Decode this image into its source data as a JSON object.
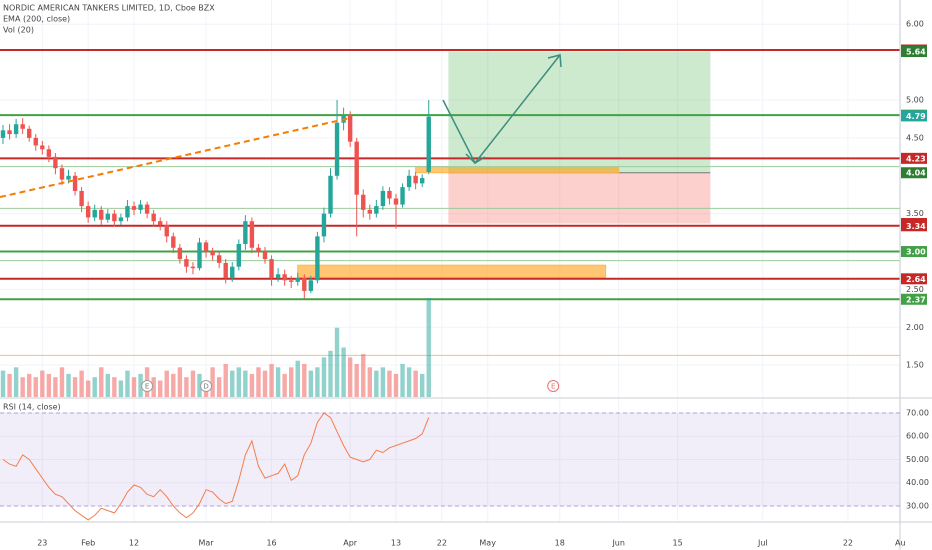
{
  "chart_data": {
    "type": "candlestick",
    "title": "NORDIC AMERICAN TANKERS LIMITED, 1D, Cboe BZX",
    "indicators": [
      "EMA (200, close)",
      "Vol (20)"
    ],
    "up_color": "#26a69a",
    "down_color": "#ef5350",
    "open": [
      4.5,
      4.6,
      4.55,
      4.68,
      4.62,
      4.5,
      4.4,
      4.35,
      4.25,
      4.1,
      3.95,
      4.0,
      3.8,
      3.6,
      3.45,
      3.55,
      3.42,
      3.5,
      3.4,
      3.45,
      3.6,
      3.55,
      3.62,
      3.5,
      3.4,
      3.35,
      3.2,
      3.05,
      2.9,
      2.8,
      2.78,
      3.12,
      3.0,
      2.95,
      2.85,
      2.65,
      2.8,
      3.1,
      3.4,
      3.05,
      3.0,
      2.9,
      2.65,
      2.7,
      2.62,
      2.6,
      2.65,
      2.48,
      2.62,
      3.2,
      3.5,
      4.0,
      4.7,
      4.8,
      4.45,
      3.75,
      3.55,
      3.5,
      3.6,
      3.8,
      3.7,
      3.62,
      3.85,
      4.0,
      3.9,
      4.05
    ],
    "high": [
      4.67,
      4.68,
      4.75,
      4.76,
      4.66,
      4.55,
      4.46,
      4.4,
      4.3,
      4.15,
      4.08,
      4.05,
      3.85,
      3.66,
      3.62,
      3.6,
      3.56,
      3.55,
      3.5,
      3.68,
      3.66,
      3.68,
      3.66,
      3.55,
      3.45,
      3.4,
      3.25,
      3.1,
      2.95,
      2.86,
      3.18,
      3.15,
      3.05,
      3.0,
      2.9,
      2.86,
      3.16,
      3.48,
      3.45,
      3.1,
      3.06,
      2.95,
      2.78,
      2.76,
      2.68,
      2.72,
      2.7,
      2.68,
      3.26,
      3.58,
      4.1,
      5.0,
      4.9,
      4.85,
      4.5,
      3.82,
      3.62,
      3.68,
      3.86,
      3.85,
      3.76,
      3.9,
      4.08,
      4.05,
      4.02,
      5.0
    ],
    "low": [
      4.42,
      4.48,
      4.5,
      4.55,
      4.45,
      4.33,
      4.28,
      4.18,
      4.02,
      3.88,
      3.9,
      3.74,
      3.52,
      3.38,
      3.4,
      3.35,
      3.38,
      3.33,
      3.35,
      3.4,
      3.48,
      3.5,
      3.44,
      3.33,
      3.28,
      3.12,
      2.98,
      2.84,
      2.72,
      2.7,
      2.75,
      2.92,
      2.88,
      2.78,
      2.58,
      2.6,
      2.75,
      3.02,
      2.98,
      2.93,
      2.84,
      2.55,
      2.6,
      2.55,
      2.52,
      2.55,
      2.38,
      2.45,
      2.58,
      3.12,
      3.45,
      3.95,
      4.6,
      4.38,
      3.2,
      3.45,
      3.42,
      3.45,
      3.55,
      3.62,
      3.3,
      3.58,
      3.8,
      3.82,
      3.85,
      4.02
    ],
    "close": [
      4.6,
      4.55,
      4.68,
      4.62,
      4.5,
      4.4,
      4.35,
      4.25,
      4.1,
      3.95,
      4.0,
      3.8,
      3.6,
      3.45,
      3.55,
      3.42,
      3.5,
      3.4,
      3.45,
      3.6,
      3.55,
      3.62,
      3.5,
      3.4,
      3.35,
      3.2,
      3.05,
      2.9,
      2.8,
      2.78,
      3.12,
      3.0,
      2.95,
      2.85,
      2.65,
      2.8,
      3.1,
      3.4,
      3.05,
      3.0,
      2.9,
      2.65,
      2.7,
      2.62,
      2.6,
      2.65,
      2.48,
      2.62,
      3.2,
      3.5,
      4.0,
      4.7,
      4.8,
      4.45,
      3.75,
      3.55,
      3.5,
      3.6,
      3.8,
      3.7,
      3.62,
      3.85,
      4.0,
      3.9,
      3.97,
      4.78
    ],
    "volume": [
      8,
      7,
      9,
      6,
      7,
      6,
      8,
      7,
      6,
      9,
      7,
      6,
      8,
      5,
      6,
      9,
      7,
      6,
      5,
      8,
      6,
      7,
      9,
      6,
      5,
      8,
      7,
      9,
      6,
      8,
      7,
      5,
      9,
      6,
      10,
      8,
      9,
      8,
      7,
      9,
      8,
      10,
      9,
      7,
      9,
      11,
      10,
      8,
      9,
      12,
      14,
      21,
      15,
      12,
      10,
      13,
      9,
      8,
      9,
      8,
      7,
      10,
      9,
      8,
      7,
      30
    ],
    "volume_ylim": [
      0,
      40
    ],
    "xlim": [
      -0.46,
      136.95
    ],
    "xticks": [
      {
        "value": 6,
        "label": "23"
      },
      {
        "value": 13,
        "label": "Feb"
      },
      {
        "value": 20,
        "label": "12"
      },
      {
        "value": 31,
        "label": "Mar"
      },
      {
        "value": 41,
        "label": "16"
      },
      {
        "value": 53,
        "label": "Apr"
      },
      {
        "value": 60,
        "label": "13"
      },
      {
        "value": 67,
        "label": "22"
      },
      {
        "value": 74,
        "label": "May"
      },
      {
        "value": 85,
        "label": "18"
      },
      {
        "value": 94,
        "label": "Jun"
      },
      {
        "value": 103,
        "label": "15"
      },
      {
        "value": 116,
        "label": "Jul"
      },
      {
        "value": 129,
        "label": "22"
      },
      {
        "value": 137,
        "label": "Au"
      }
    ],
    "ylim": [
      1.08,
      6.32
    ],
    "yticks": [
      {
        "value": 1.5,
        "label": "1.50"
      },
      {
        "value": 2,
        "label": "2.00"
      },
      {
        "value": 2.5,
        "label": "2.50"
      },
      {
        "value": 3.5,
        "label": "3.50"
      },
      {
        "value": 4.5,
        "label": "4.50"
      },
      {
        "value": 5,
        "label": "5.00"
      },
      {
        "value": 6,
        "label": "6.00"
      }
    ],
    "grid": true,
    "levels": [
      {
        "value": 5.66,
        "color": "#c62828",
        "width": 2
      },
      {
        "value": 4.8,
        "color": "#43a047",
        "width": 2
      },
      {
        "value": 4.23,
        "color": "#c62828",
        "width": 2
      },
      {
        "value": 4.12,
        "color": "#9ccc9c",
        "width": 1
      },
      {
        "value": 3.57,
        "color": "#9ccc9c",
        "width": 1
      },
      {
        "value": 3.34,
        "color": "#c62828",
        "width": 2
      },
      {
        "value": 3.0,
        "color": "#43a047",
        "width": 2
      },
      {
        "value": 2.88,
        "color": "#9ccc9c",
        "width": 1
      },
      {
        "value": 2.64,
        "color": "#c62828",
        "width": 2
      },
      {
        "value": 2.37,
        "color": "#43a047",
        "width": 2
      },
      {
        "value": 1.63,
        "color": "#f6c26b",
        "width": 1
      }
    ],
    "price_labels": [
      {
        "value": 5.66,
        "label": "5.66",
        "color": "#c62828"
      },
      {
        "value": 5.64,
        "label": "5.64",
        "color": "#2e7d32"
      },
      {
        "value": 4.8,
        "label": "4.80",
        "color": "#43a047"
      },
      {
        "value": 4.79,
        "label": "4.79",
        "color": "#26a69a"
      },
      {
        "value": 4.23,
        "label": "4.23",
        "color": "#c62828"
      },
      {
        "value": 4.04,
        "label": "4.04",
        "color": "#2e7d32"
      },
      {
        "value": 3.37,
        "label": "3.37",
        "color": "#c62828"
      },
      {
        "value": 3.34,
        "label": "3.34",
        "color": "#c62828"
      },
      {
        "value": 3.0,
        "label": "3.00",
        "color": "#43a047"
      },
      {
        "value": 2.64,
        "label": "2.64",
        "color": "#c62828"
      },
      {
        "value": 2.37,
        "label": "2.37",
        "color": "#43a047"
      }
    ],
    "position": {
      "entry": 4.04,
      "target": 5.64,
      "stop": 3.37,
      "start": 68,
      "end": 108
    },
    "zones": [
      {
        "low": 4.04,
        "high": 4.12,
        "start": 63,
        "end": 94
      },
      {
        "low": 2.66,
        "high": 2.82,
        "start": 45,
        "end": 92
      }
    ],
    "events": [
      {
        "index": 22,
        "label": "E"
      },
      {
        "index": 31,
        "label": "D"
      },
      {
        "index": 84,
        "label": "E"
      }
    ],
    "rsi": {
      "name": "RSI (14, close)",
      "color": "#f57c4a",
      "band": [
        30,
        70
      ],
      "ylim": [
        23.1,
        76.0
      ],
      "yticks": [
        {
          "value": 30,
          "label": "30.00"
        },
        {
          "value": 40,
          "label": "40.00"
        },
        {
          "value": 50,
          "label": "50.00"
        },
        {
          "value": 60,
          "label": "60.00"
        },
        {
          "value": 70,
          "label": "70.00"
        }
      ],
      "values": [
        50,
        48,
        47,
        52,
        50,
        46,
        42,
        38,
        35,
        34,
        31,
        28,
        26,
        24,
        26,
        29,
        28,
        27,
        31,
        36,
        39,
        38,
        35,
        34,
        37,
        34,
        30,
        27,
        25,
        27,
        31,
        37,
        36,
        33,
        31,
        32,
        41,
        52,
        58,
        47,
        42,
        43,
        44,
        48,
        41,
        43,
        52,
        57,
        66,
        70,
        68,
        62,
        56,
        51,
        50,
        49,
        50,
        54,
        53,
        55,
        56,
        57,
        58,
        59,
        61,
        68
      ]
    }
  }
}
